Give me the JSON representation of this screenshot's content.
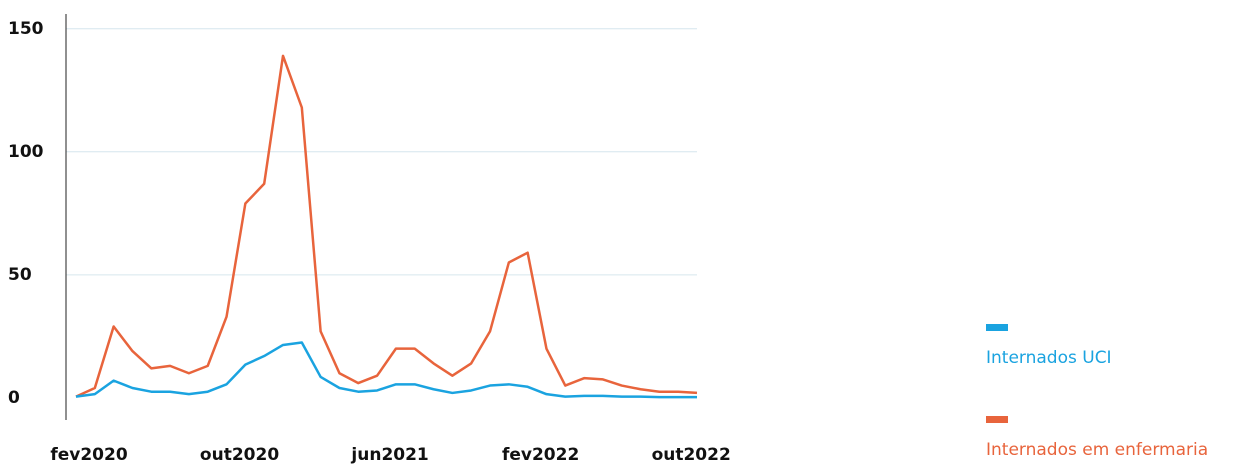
{
  "chart_data": {
    "type": "line",
    "categories": [
      "fev2020",
      null,
      null,
      null,
      null,
      null,
      null,
      null,
      "out2020",
      null,
      null,
      null,
      null,
      null,
      null,
      null,
      "jun2021",
      null,
      null,
      null,
      null,
      null,
      null,
      null,
      "fev2022",
      null,
      null,
      null,
      null,
      null,
      null,
      null,
      "out2022",
      null
    ],
    "series": [
      {
        "name": "Internados UCI",
        "color": "#1aa3e0",
        "values": [
          0.5,
          1.5,
          7,
          4,
          2.5,
          2.5,
          1.5,
          2.5,
          5.5,
          13.5,
          17,
          21.5,
          22.5,
          8.5,
          4,
          2.5,
          3,
          5.5,
          5.5,
          3.5,
          2,
          3,
          5,
          5.5,
          4.5,
          1.5,
          0.5,
          0.8,
          0.8,
          0.5,
          0.5,
          0.3,
          0.3,
          0.3
        ]
      },
      {
        "name": "Internados em enfermaria",
        "color": "#e8643c",
        "values": [
          0.5,
          4,
          29,
          19,
          12,
          13,
          10,
          13,
          33,
          79,
          87,
          139,
          118,
          27,
          10,
          6,
          9,
          20,
          20,
          14,
          9,
          14,
          27,
          55,
          59,
          20,
          5,
          8,
          7.5,
          5,
          3.5,
          2.5,
          2.5,
          2
        ]
      }
    ],
    "ylim": [
      -9,
      156
    ],
    "yticks": [
      0,
      50,
      100,
      150
    ],
    "grid": true,
    "legend": "right"
  }
}
